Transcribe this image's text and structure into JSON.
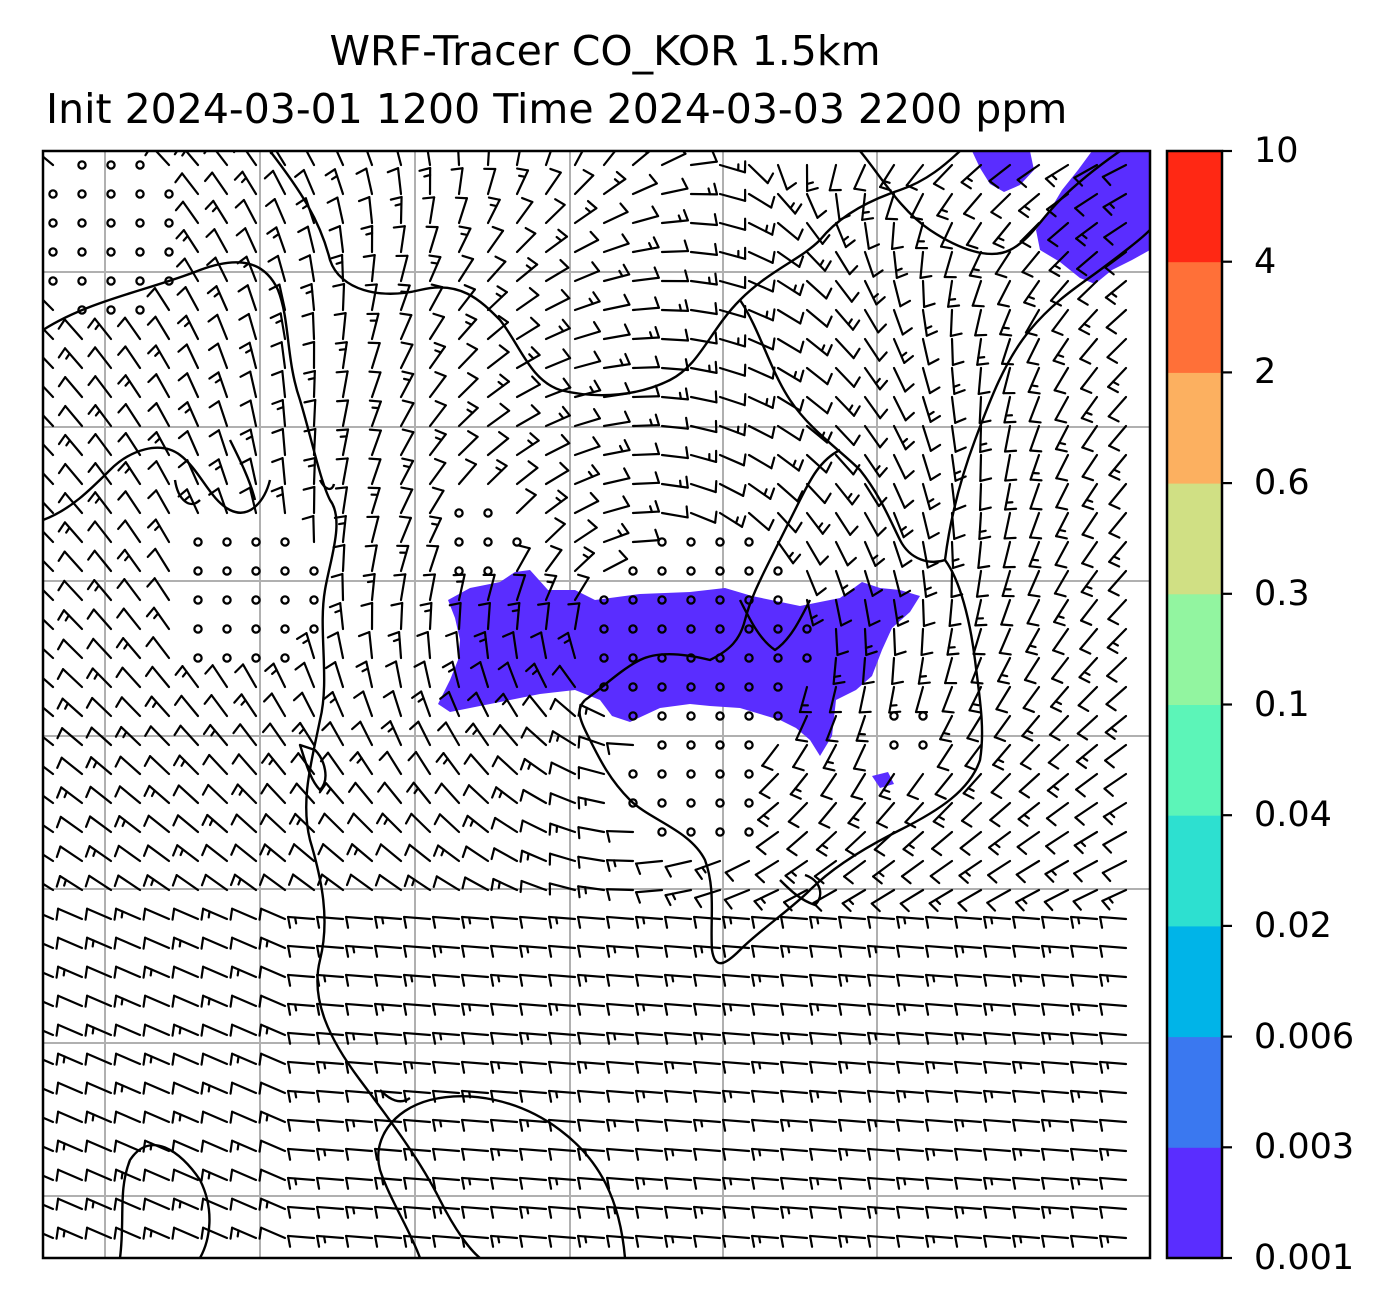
{
  "title": {
    "line1": "WRF-Tracer CO_KOR 1.5km",
    "line2": "Init 2024-03-01 1200 Time 2024-03-03 2200 ppm"
  },
  "map": {
    "fill_color": "#5a2dff",
    "barb_color": "#000000",
    "coast_color": "#000000",
    "grid_color": "#b0b0b0",
    "grid": true
  },
  "colorbar": {
    "levels": [
      "0.001",
      "0.003",
      "0.006",
      "0.02",
      "0.04",
      "0.1",
      "0.3",
      "0.6",
      "2",
      "4",
      "10"
    ],
    "colors": [
      "#5a2dff",
      "#3a78f0",
      "#00b4e8",
      "#2de0d0",
      "#5cf5b8",
      "#92f5a0",
      "#d0e084",
      "#fcb060",
      "#ff7038",
      "#ff2814"
    ]
  },
  "chart_data": {
    "type": "heatmap",
    "title": "WRF-Tracer CO_KOR 1.5km\nInit 2024-03-01 1200 Time 2024-03-03 2200 ppm",
    "unit": "ppm",
    "colorbar_levels": [
      0.001,
      0.003,
      0.006,
      0.02,
      0.04,
      0.1,
      0.3,
      0.6,
      2,
      4,
      10
    ],
    "grid": true
  }
}
